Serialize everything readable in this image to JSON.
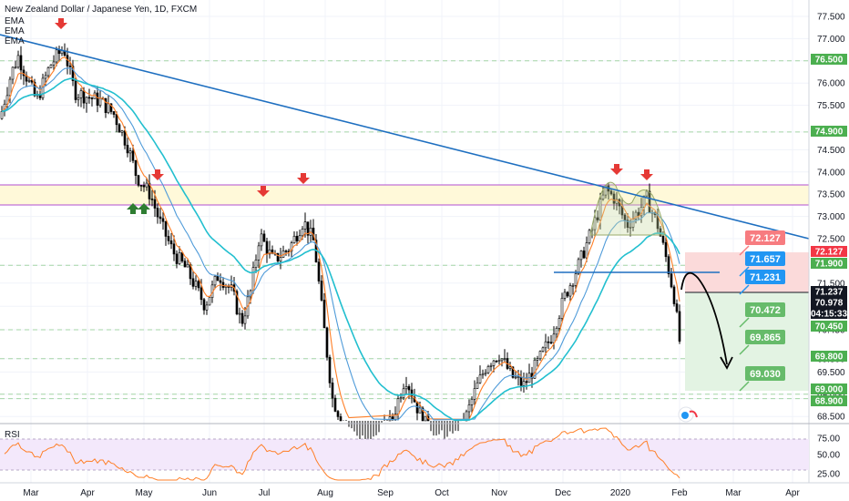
{
  "header": {
    "title": "New Zealand Dollar / Japanese Yen, 1D, FXCM",
    "indicators": [
      "EMA",
      "EMA",
      "EMA"
    ]
  },
  "rsi": {
    "label": "RSI",
    "ticks": [
      "75.00",
      "50.00",
      "25.00"
    ],
    "upper": 70,
    "lower": 30
  },
  "chart_data": {
    "type": "candlestick",
    "symbol": "NZDJPY",
    "x_ticks": [
      "Mar",
      "Apr",
      "May",
      "Jun",
      "Jul",
      "Aug",
      "Sep",
      "Oct",
      "Nov",
      "Dec",
      "2020",
      "Feb",
      "Mar",
      "Apr"
    ],
    "y_ticks": [
      "77.500",
      "77.000",
      "76.500",
      "76.000",
      "75.500",
      "74.900",
      "74.500",
      "74.000",
      "73.500",
      "73.000",
      "72.500",
      "71.900",
      "71.500",
      "70.978",
      "70.450",
      "69.800",
      "69.500",
      "69.000",
      "68.900",
      "68.500"
    ],
    "ylim": [
      68.4,
      78.0
    ],
    "price_tags": [
      {
        "value": "76.500",
        "color": "#4caf50"
      },
      {
        "value": "74.900",
        "color": "#4caf50"
      },
      {
        "value": "72.127",
        "color": "#f23645"
      },
      {
        "value": "71.900",
        "color": "#4caf50"
      },
      {
        "value": "71.237",
        "color": "#131722"
      },
      {
        "value": "70.978",
        "color": "#131722"
      },
      {
        "value": "04:15:33",
        "color": "#131722"
      },
      {
        "value": "70.450",
        "color": "#4caf50"
      },
      {
        "value": "69.800",
        "color": "#4caf50"
      },
      {
        "value": "69.000",
        "color": "#4caf50"
      },
      {
        "value": "68.900",
        "color": "#4caf50"
      }
    ],
    "annotations": [
      {
        "text": "72.127",
        "color": "#f77c80"
      },
      {
        "text": "71.657",
        "color": "#2196f3"
      },
      {
        "text": "71.231",
        "color": "#2196f3"
      },
      {
        "text": "70.472",
        "color": "#66bb6a"
      },
      {
        "text": "69.865",
        "color": "#66bb6a"
      },
      {
        "text": "69.030",
        "color": "#66bb6a"
      }
    ],
    "levels": {
      "resistance_zone": [
        73.22,
        73.7
      ],
      "trendline_start": 77.1,
      "trendline_end": 72.45,
      "neckline": 71.65,
      "entry": 71.23,
      "stop": 72.13,
      "target": 69.0
    },
    "emas": [
      "EMA",
      "EMA",
      "EMA"
    ],
    "colors": {
      "up": "#ffffff",
      "down": "#000000",
      "ema_fast": "#ff7f27",
      "ema_mid": "#4f9bd9",
      "ema_slow": "#22bfcf",
      "trend": "#1e6fc0",
      "zone": "#fff9d9",
      "zone_line": "#b04fd1"
    }
  }
}
